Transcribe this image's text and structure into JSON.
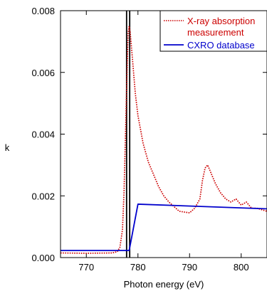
{
  "chart_data": {
    "type": "line",
    "xlabel": "Photon energy (eV)",
    "ylabel": "k",
    "xlim": [
      765,
      805
    ],
    "ylim": [
      0,
      0.008
    ],
    "x_ticks": [
      770,
      780,
      790,
      800
    ],
    "x_tick_labels": [
      "770",
      "780",
      "790",
      "800"
    ],
    "y_ticks": [
      0,
      0.002,
      0.004,
      0.006,
      0.008
    ],
    "y_tick_labels": [
      "0.000",
      "0.002",
      "0.004",
      "0.006",
      "0.008"
    ],
    "vlines": [
      777.8,
      778.4
    ],
    "legend_position": "top-right",
    "series": [
      {
        "name": "X-ray absorption measurement",
        "legend_lines": [
          "X-ray absorption",
          "measurement"
        ],
        "color": "#cc0000",
        "style": "dotted",
        "x": [
          765,
          770,
          775,
          776,
          776.5,
          777,
          777.3,
          777.6,
          777.9,
          778.1,
          778.3,
          778.5,
          779,
          779.5,
          780,
          781,
          782,
          783,
          784,
          785,
          786,
          788,
          790,
          791,
          792,
          792.5,
          793,
          793.5,
          794,
          795,
          796,
          797,
          798,
          799,
          800,
          801,
          802,
          803,
          805
        ],
        "y": [
          0.00015,
          0.00014,
          0.00015,
          0.00019,
          0.00033,
          0.0009,
          0.0021,
          0.0041,
          0.0061,
          0.0073,
          0.0075,
          0.0073,
          0.0063,
          0.0053,
          0.0046,
          0.0037,
          0.0031,
          0.0027,
          0.0023,
          0.002,
          0.0018,
          0.0015,
          0.00145,
          0.0016,
          0.0019,
          0.0025,
          0.0029,
          0.003,
          0.0028,
          0.0024,
          0.0021,
          0.0019,
          0.0018,
          0.0019,
          0.0017,
          0.0018,
          0.0016,
          0.0016,
          0.0015
        ]
      },
      {
        "name": "CXRO database",
        "color": "#0000cc",
        "style": "solid",
        "x": [
          765,
          777.5,
          778.3,
          780,
          805
        ],
        "y": [
          0.00023,
          0.00023,
          0.00023,
          0.00173,
          0.00158
        ]
      }
    ]
  }
}
